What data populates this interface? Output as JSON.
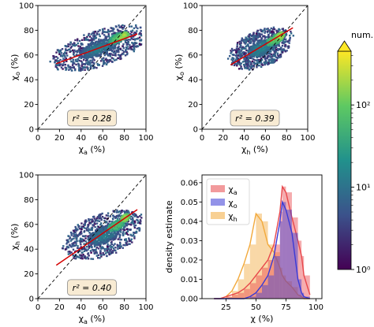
{
  "colorbar": {
    "label": "num.",
    "ticks": [
      {
        "value": 1,
        "label": "10⁰"
      },
      {
        "value": 10,
        "label": "10¹"
      },
      {
        "value": 100,
        "label": "10²"
      }
    ],
    "scale": "log",
    "range": [
      1,
      450
    ],
    "extend": "max",
    "colormap": [
      "#440154",
      "#3b528b",
      "#21918c",
      "#5ec962",
      "#fde725"
    ]
  },
  "chart_data": [
    {
      "type": "heatmap",
      "subtype": "2d-histogram-scatter",
      "xlabel": "χa (%)",
      "ylabel": "χo (%)",
      "xlim": [
        0,
        100
      ],
      "ylim": [
        0,
        100
      ],
      "xticks": [
        0,
        20,
        40,
        60,
        80,
        100
      ],
      "yticks": [
        0,
        20,
        40,
        60,
        80,
        100
      ],
      "identity_line": true,
      "annotation": "r² = 0.28",
      "fit_line": [
        [
          17,
          53
        ],
        [
          92,
          77
        ]
      ],
      "density_core": [
        {
          "cx": 55,
          "cy": 66,
          "rx": 18,
          "ry": 6,
          "count": 15
        },
        {
          "cx": 72,
          "cy": 74,
          "rx": 7,
          "ry": 4,
          "count": 90
        },
        {
          "cx": 78,
          "cy": 76,
          "rx": 5,
          "ry": 3,
          "count": 250
        }
      ]
    },
    {
      "type": "heatmap",
      "subtype": "2d-histogram-scatter",
      "xlabel": "χh (%)",
      "ylabel": "χo (%)",
      "xlim": [
        0,
        100
      ],
      "ylim": [
        0,
        100
      ],
      "xticks": [
        0,
        20,
        40,
        60,
        80,
        100
      ],
      "yticks": [
        0,
        20,
        40,
        60,
        80,
        100
      ],
      "identity_line": true,
      "annotation": "r² = 0.39",
      "fit_line": [
        [
          27,
          52
        ],
        [
          86,
          82
        ]
      ],
      "density_core": [
        {
          "cx": 55,
          "cy": 66,
          "rx": 12,
          "ry": 6,
          "count": 20
        },
        {
          "cx": 68,
          "cy": 73,
          "rx": 8,
          "ry": 4,
          "count": 120
        },
        {
          "cx": 73,
          "cy": 76,
          "rx": 4,
          "ry": 3,
          "count": 300
        }
      ]
    },
    {
      "type": "heatmap",
      "subtype": "2d-histogram-scatter",
      "xlabel": "χa (%)",
      "ylabel": "χh (%)",
      "xlim": [
        0,
        100
      ],
      "ylim": [
        0,
        100
      ],
      "xticks": [
        0,
        20,
        40,
        60,
        80,
        100
      ],
      "yticks": [
        0,
        20,
        40,
        60,
        80,
        100
      ],
      "identity_line": true,
      "annotation": "r² = 0.40",
      "fit_line": [
        [
          17,
          27
        ],
        [
          92,
          72
        ]
      ],
      "density_core": [
        {
          "cx": 60,
          "cy": 52,
          "rx": 15,
          "ry": 7,
          "count": 15
        },
        {
          "cx": 72,
          "cy": 60,
          "rx": 8,
          "ry": 4,
          "count": 90
        },
        {
          "cx": 80,
          "cy": 66,
          "rx": 4,
          "ry": 3,
          "count": 250
        }
      ]
    },
    {
      "type": "area",
      "subtype": "histogram-density",
      "xlabel": "χ (%)",
      "ylabel": "density estimate",
      "xlim": [
        5,
        105
      ],
      "ylim": [
        0,
        0.064
      ],
      "xticks": [
        25,
        50,
        75,
        100
      ],
      "yticks": [
        0,
        0.01,
        0.02,
        0.03,
        0.04,
        0.05,
        0.06
      ],
      "ytick_labels": [
        "0.00",
        "0.01",
        "0.02",
        "0.03",
        "0.04",
        "0.05",
        "0.06"
      ],
      "legend_position": "top-left",
      "x": [
        15,
        20,
        25,
        30,
        35,
        40,
        45,
        50,
        55,
        60,
        65,
        70,
        72,
        75,
        80,
        85,
        88,
        90,
        95
      ],
      "series": [
        {
          "name": "χa",
          "color": "#e8474b",
          "values": [
            0.0,
            0.0,
            0.001,
            0.002,
            0.003,
            0.005,
            0.008,
            0.012,
            0.016,
            0.02,
            0.028,
            0.045,
            0.058,
            0.055,
            0.042,
            0.03,
            0.022,
            0.012,
            0.002
          ]
        },
        {
          "name": "χo",
          "color": "#3a3ad6",
          "values": [
            0.0,
            0.0,
            0.0,
            0.0,
            0.0,
            0.0,
            0.001,
            0.003,
            0.007,
            0.012,
            0.022,
            0.04,
            0.05,
            0.046,
            0.034,
            0.01,
            0.003,
            0.001,
            0.0
          ]
        },
        {
          "name": "χh",
          "color": "#f2a93b",
          "values": [
            0.0,
            0.0,
            0.001,
            0.004,
            0.01,
            0.018,
            0.028,
            0.044,
            0.04,
            0.028,
            0.024,
            0.016,
            0.012,
            0.009,
            0.006,
            0.002,
            0.001,
            0.0,
            0.0
          ]
        }
      ]
    }
  ]
}
